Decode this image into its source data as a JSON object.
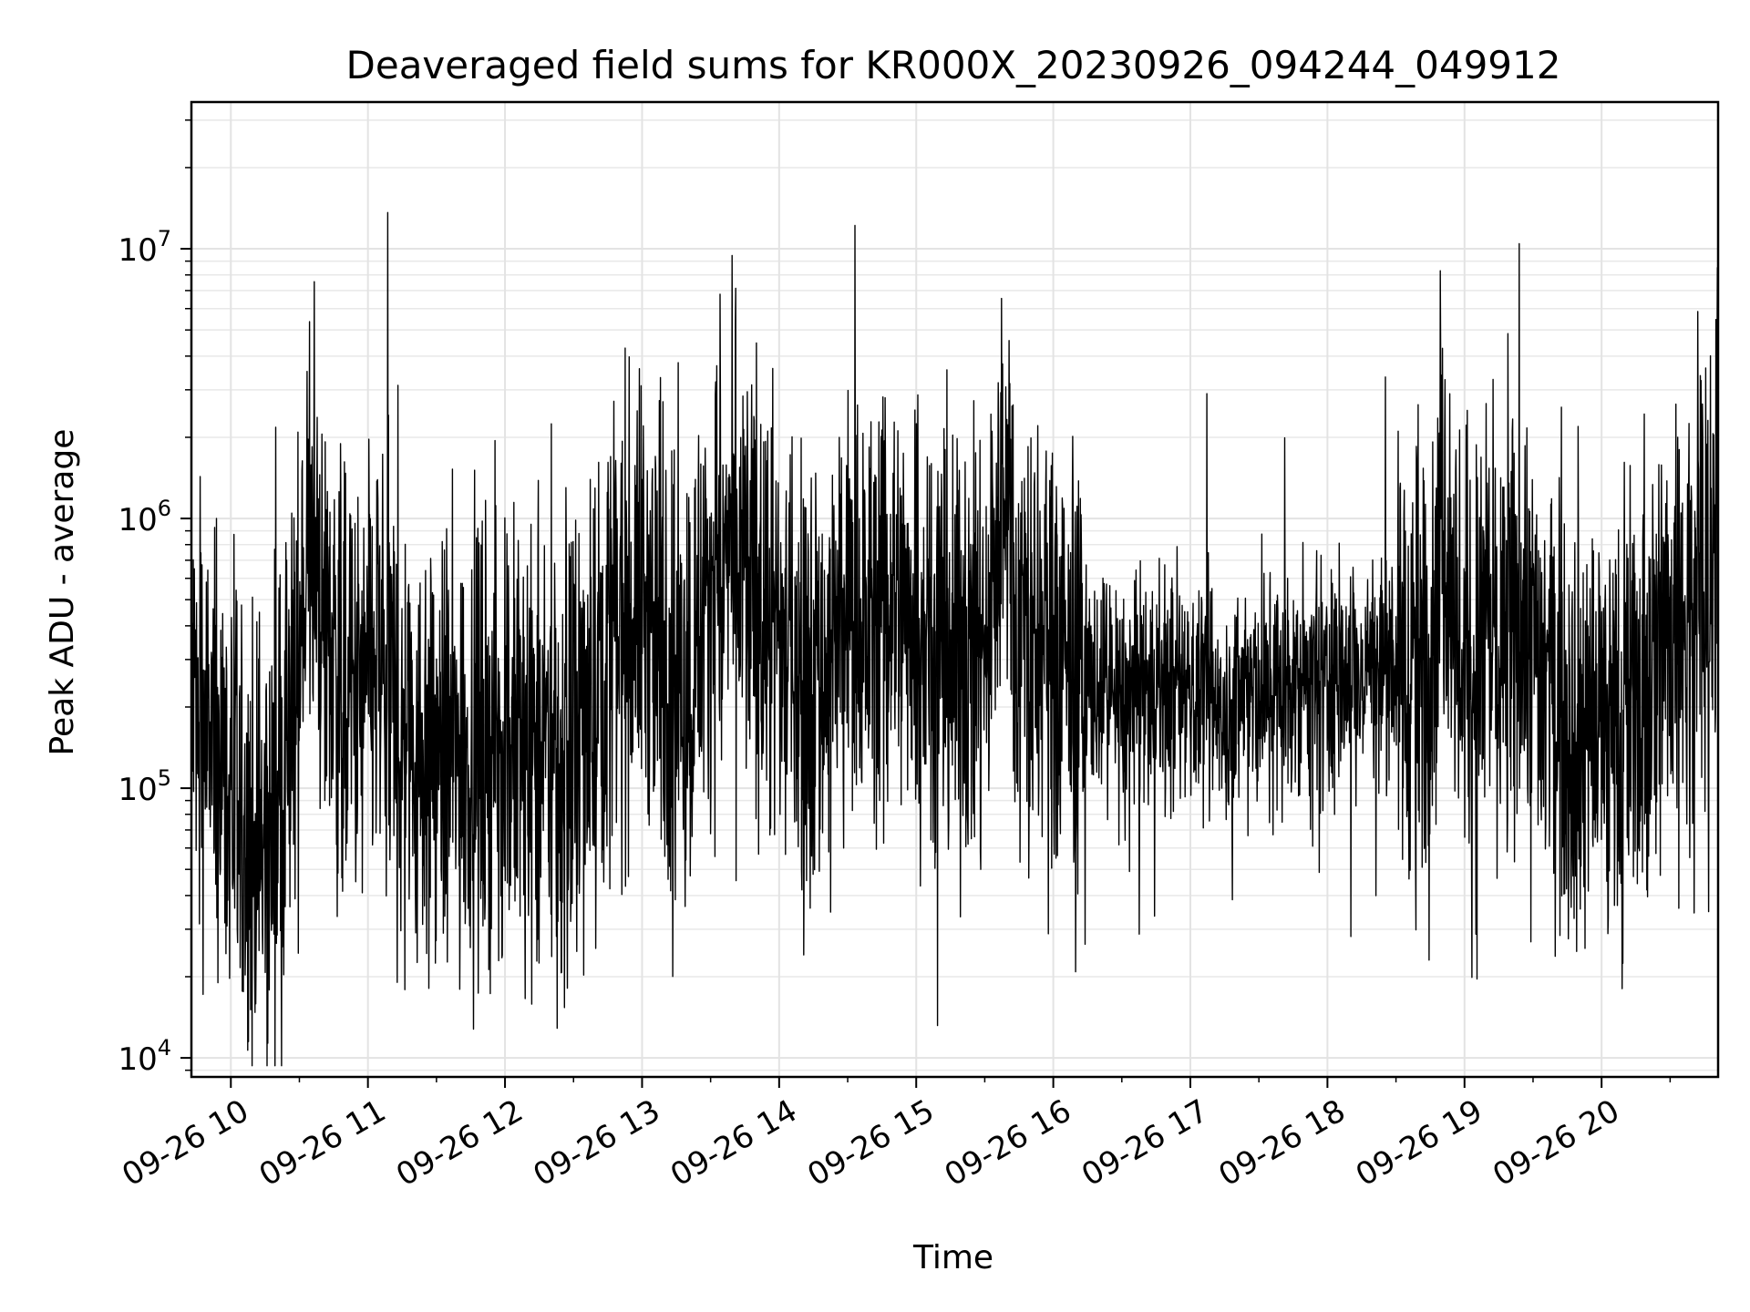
{
  "chart_data": {
    "type": "line",
    "title": "Deaveraged field sums for KR000X_20230926_094244_049912",
    "xlabel": "Time",
    "ylabel": "Peak ADU - average",
    "x_type": "datetime",
    "y_scale": "log",
    "xlim": [
      "2023-09-26T09:42:44",
      "2023-09-26T20:51:00"
    ],
    "ylim": [
      8500,
      35000000
    ],
    "grid": true,
    "grid_minor": true,
    "legend": "none",
    "line_color": "#000000",
    "x_ticks": [
      {
        "value": "2023-09-26T10:00:00",
        "label": "09-26 10"
      },
      {
        "value": "2023-09-26T11:00:00",
        "label": "09-26 11"
      },
      {
        "value": "2023-09-26T12:00:00",
        "label": "09-26 12"
      },
      {
        "value": "2023-09-26T13:00:00",
        "label": "09-26 13"
      },
      {
        "value": "2023-09-26T14:00:00",
        "label": "09-26 14"
      },
      {
        "value": "2023-09-26T15:00:00",
        "label": "09-26 15"
      },
      {
        "value": "2023-09-26T16:00:00",
        "label": "09-26 16"
      },
      {
        "value": "2023-09-26T17:00:00",
        "label": "09-26 17"
      },
      {
        "value": "2023-09-26T18:00:00",
        "label": "09-26 18"
      },
      {
        "value": "2023-09-26T19:00:00",
        "label": "09-26 19"
      },
      {
        "value": "2023-09-26T20:00:00",
        "label": "09-26 20"
      }
    ],
    "y_ticks": [
      {
        "value": 10000,
        "base": "10",
        "exp": "4"
      },
      {
        "value": 100000,
        "base": "10",
        "exp": "5"
      },
      {
        "value": 1000000,
        "base": "10",
        "exp": "6"
      },
      {
        "value": 10000000,
        "base": "10",
        "exp": "7"
      }
    ],
    "series": [
      {
        "x": [
          "2023-09-26T09:42:44",
          "2023-09-26T09:50:00",
          "2023-09-26T10:00:00",
          "2023-09-26T10:05:00",
          "2023-09-26T10:15:00",
          "2023-09-26T10:25:00",
          "2023-09-26T10:34:00",
          "2023-09-26T10:45:00",
          "2023-09-26T10:55:00",
          "2023-09-26T11:05:00",
          "2023-09-26T11:15:00",
          "2023-09-26T11:30:00",
          "2023-09-26T11:45:00",
          "2023-09-26T12:00:00",
          "2023-09-26T12:15:00",
          "2023-09-26T12:30:00",
          "2023-09-26T12:45:00",
          "2023-09-26T13:00:00",
          "2023-09-26T13:10:00",
          "2023-09-26T13:20:00",
          "2023-09-26T13:30:00",
          "2023-09-26T13:40:00",
          "2023-09-26T13:50:00",
          "2023-09-26T14:00:00",
          "2023-09-26T14:15:00",
          "2023-09-26T14:30:00",
          "2023-09-26T14:45:00",
          "2023-09-26T15:00:00",
          "2023-09-26T15:15:00",
          "2023-09-26T15:30:00",
          "2023-09-26T15:40:00",
          "2023-09-26T15:45:00",
          "2023-09-26T16:00:00",
          "2023-09-26T16:15:00",
          "2023-09-26T16:30:00",
          "2023-09-26T16:45:00",
          "2023-09-26T17:00:00",
          "2023-09-26T17:15:00",
          "2023-09-26T17:30:00",
          "2023-09-26T17:45:00",
          "2023-09-26T18:00:00",
          "2023-09-26T18:15:00",
          "2023-09-26T18:30:00",
          "2023-09-26T18:45:00",
          "2023-09-26T18:50:00",
          "2023-09-26T19:00:00",
          "2023-09-26T19:10:00",
          "2023-09-26T19:20:00",
          "2023-09-26T19:30:00",
          "2023-09-26T19:45:00",
          "2023-09-26T20:00:00",
          "2023-09-26T20:15:00",
          "2023-09-26T20:30:00",
          "2023-09-26T20:45:00",
          "2023-09-26T20:50:00",
          "2023-09-26T20:51:00"
        ],
        "y": [
          200000,
          150000,
          100000,
          50000,
          60000,
          120000,
          800000,
          300000,
          180000,
          300000,
          150000,
          130000,
          140000,
          150000,
          120000,
          130000,
          350000,
          500000,
          300000,
          250000,
          600000,
          700000,
          500000,
          350000,
          250000,
          400000,
          450000,
          500000,
          300000,
          350000,
          1500000,
          400000,
          300000,
          250000,
          200000,
          230000,
          220000,
          210000,
          220000,
          240000,
          250000,
          280000,
          300000,
          280000,
          1200000,
          250000,
          400000,
          350000,
          300000,
          220000,
          150000,
          200000,
          400000,
          600000,
          500000,
          8500000
        ]
      }
    ]
  }
}
